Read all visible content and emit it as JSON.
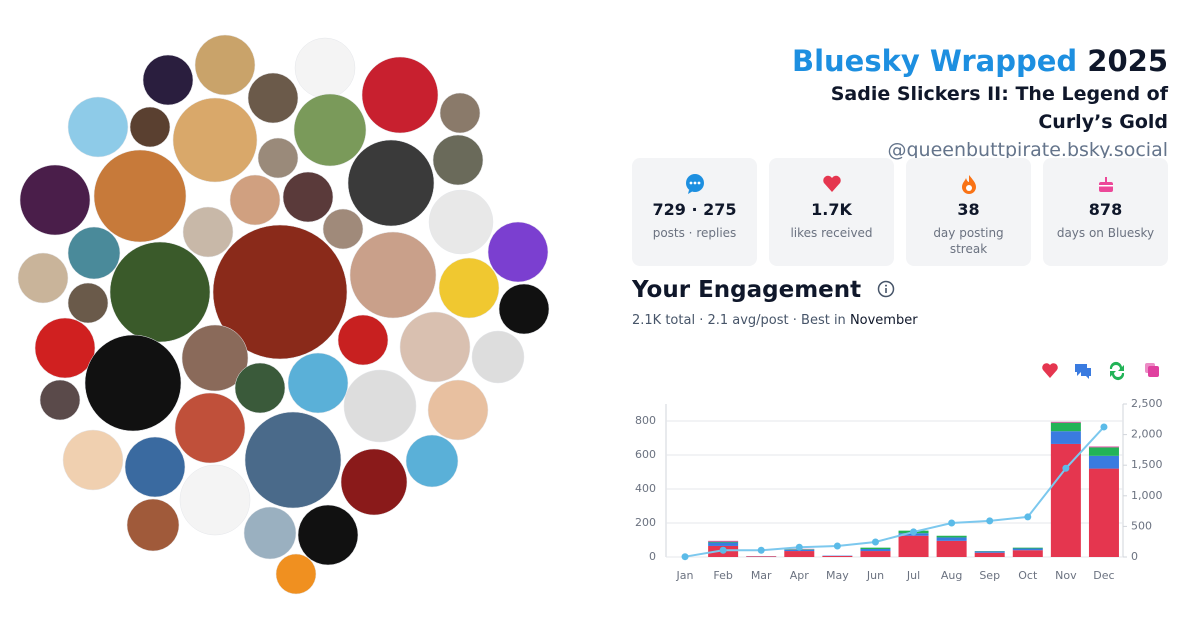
{
  "header": {
    "title": "Bluesky Wrapped",
    "year": "2025",
    "display_name": "Sadie Slickers II: The Legend of Curly’s Gold",
    "handle": "@queenbuttpirate.bsky.social"
  },
  "stats": [
    {
      "value": "729 · 275",
      "label": "posts · replies"
    },
    {
      "value": "1.7K",
      "label": "likes received"
    },
    {
      "value": "38",
      "label": "day posting streak"
    },
    {
      "value": "878",
      "label": "days on Bluesky"
    }
  ],
  "engagement": {
    "title": "Your Engagement",
    "summary": "2.1K total · 2.1 avg/post · Best in",
    "best_month": "November"
  },
  "chart_data": {
    "type": "bar",
    "stacked": true,
    "grid": true,
    "categories": [
      "Jan",
      "Feb",
      "Mar",
      "Apr",
      "May",
      "Jun",
      "Jul",
      "Aug",
      "Sep",
      "Oct",
      "Nov",
      "Dec"
    ],
    "series": [
      {
        "color": "#e5364f",
        "values": [
          0,
          65,
          4,
          35,
          6,
          35,
          125,
          95,
          25,
          40,
          665,
          520
        ]
      },
      {
        "color": "#3a7be0",
        "values": [
          0,
          20,
          1,
          8,
          2,
          12,
          15,
          20,
          8,
          10,
          75,
          75
        ]
      },
      {
        "color": "#22b357",
        "values": [
          0,
          5,
          0,
          3,
          0,
          8,
          15,
          10,
          2,
          5,
          50,
          50
        ]
      },
      {
        "color": "#e0409f",
        "values": [
          0,
          5,
          0,
          2,
          0,
          0,
          0,
          0,
          0,
          0,
          5,
          5
        ]
      },
      {
        "type": "line",
        "axis": "y2",
        "color": "#7cc8ee",
        "values": [
          5,
          110,
          110,
          160,
          180,
          245,
          410,
          555,
          590,
          655,
          1450,
          2125
        ]
      }
    ],
    "ylim": [
      0,
      900
    ],
    "yticks": [
      0,
      200,
      400,
      600,
      800
    ],
    "y2lim": [
      0,
      2500
    ],
    "y2ticks": [
      0,
      500,
      {
        "value": 1000,
        "label": "1,000"
      },
      {
        "value": 1500,
        "label": "1,500"
      },
      {
        "value": 2000,
        "label": "2,000"
      },
      {
        "value": 2500,
        "label": "2,500"
      }
    ]
  }
}
